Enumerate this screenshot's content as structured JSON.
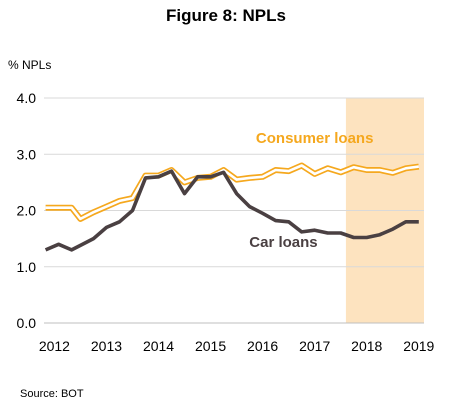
{
  "chart_data": {
    "type": "line",
    "title": "Figure 8: NPLs",
    "ylabel": "% NPLs",
    "xlabel": "",
    "ylim": [
      0,
      4
    ],
    "xlim": [
      2011.8,
      2019.1
    ],
    "yticks": [
      "0.0",
      "1.0",
      "2.0",
      "3.0",
      "4.0"
    ],
    "xticks": [
      "2012",
      "2013",
      "2014",
      "2015",
      "2016",
      "2017",
      "2018",
      "2019"
    ],
    "grid": "horizontal",
    "highlight_range": [
      2017.6,
      2019.1
    ],
    "highlight_color": "#fde3bf",
    "series": [
      {
        "name": "Consumer loans",
        "color": "#f5a81e",
        "style": "double-line",
        "x": [
          2011.83,
          2012.08,
          2012.33,
          2012.5,
          2012.75,
          2013.0,
          2013.25,
          2013.5,
          2013.75,
          2014.0,
          2014.25,
          2014.5,
          2014.75,
          2015.0,
          2015.25,
          2015.5,
          2015.75,
          2016.0,
          2016.25,
          2016.5,
          2016.75,
          2017.0,
          2017.25,
          2017.5,
          2017.75,
          2018.0,
          2018.25,
          2018.5,
          2018.75,
          2019.0
        ],
        "values": [
          2.05,
          2.05,
          2.05,
          1.85,
          1.97,
          2.07,
          2.17,
          2.22,
          2.62,
          2.62,
          2.72,
          2.5,
          2.58,
          2.6,
          2.72,
          2.55,
          2.58,
          2.6,
          2.72,
          2.7,
          2.8,
          2.65,
          2.75,
          2.68,
          2.77,
          2.72,
          2.72,
          2.67,
          2.75,
          2.78
        ]
      },
      {
        "name": "Car loans",
        "color": "#4a4042",
        "style": "solid",
        "x": [
          2011.83,
          2012.08,
          2012.33,
          2012.5,
          2012.75,
          2013.0,
          2013.25,
          2013.5,
          2013.75,
          2014.0,
          2014.25,
          2014.5,
          2014.75,
          2015.0,
          2015.25,
          2015.5,
          2015.75,
          2016.0,
          2016.25,
          2016.5,
          2016.75,
          2017.0,
          2017.25,
          2017.5,
          2017.75,
          2018.0,
          2018.25,
          2018.5,
          2018.75,
          2019.0
        ],
        "values": [
          1.3,
          1.4,
          1.3,
          1.38,
          1.5,
          1.7,
          1.8,
          2.0,
          2.58,
          2.6,
          2.7,
          2.3,
          2.6,
          2.6,
          2.68,
          2.3,
          2.07,
          1.95,
          1.82,
          1.8,
          1.62,
          1.65,
          1.6,
          1.6,
          1.52,
          1.52,
          1.57,
          1.67,
          1.8,
          1.8
        ]
      }
    ],
    "annotations": [
      {
        "text": "Consumer loans",
        "color": "#f5a81e",
        "x": 2017.0,
        "y": 3.2
      },
      {
        "text": "Car loans",
        "color": "#4a4042",
        "x": 2016.4,
        "y": 1.35
      }
    ]
  },
  "source": "Source: BOT"
}
